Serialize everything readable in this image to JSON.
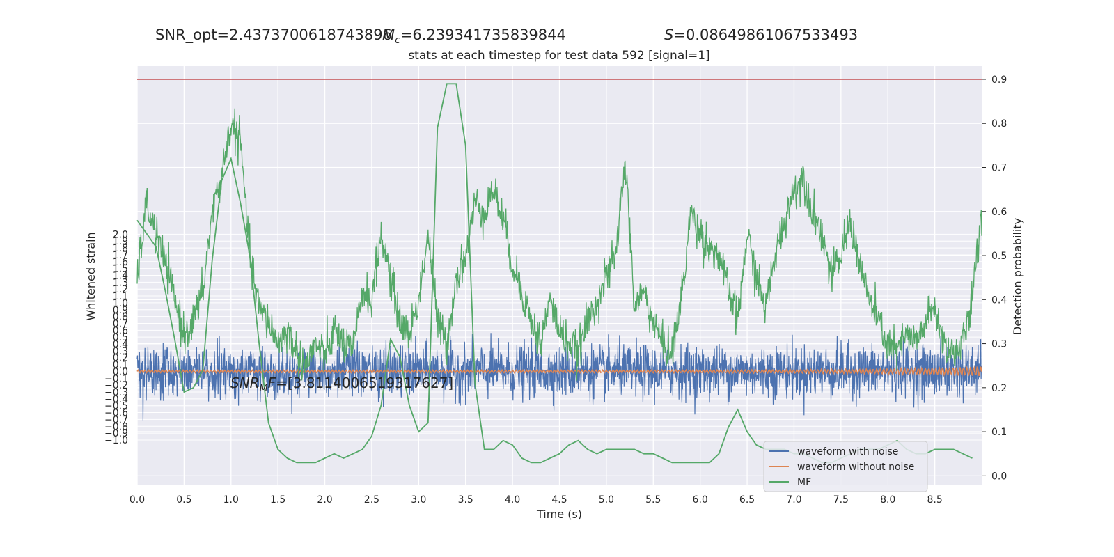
{
  "header": {
    "snr_opt": "SNR_opt=2.4373700618743896",
    "mc_symbol": "M",
    "mc_sub": "c",
    "mc_value": "=6.239341735839844",
    "s_symbol": "S",
    "s_value": "=0.08649861067533493",
    "subtitle": "stats at each timestep for test data 592 [signal=1]"
  },
  "annotation": {
    "snr_symbol": "SNR",
    "snr_sub": "M",
    "snr_tail": "F",
    "snr_value": "=[3.8114006519317627]"
  },
  "legend": {
    "items": [
      {
        "label": "waveform with noise",
        "color": "#4c72b0"
      },
      {
        "label": "waveform without noise",
        "color": "#dd8452"
      },
      {
        "label": "MF",
        "color": "#55a868"
      }
    ]
  },
  "chart_data": {
    "type": "line",
    "xlabel": "Time (s)",
    "ylabel_left": "Whitened strain",
    "ylabel_right": "Detection probability",
    "xlim": [
      0.0,
      9.0
    ],
    "ylim_left": [
      -1.65,
      4.45
    ],
    "ylim_right": [
      -0.02,
      0.93
    ],
    "x_ticks": [
      "0.0",
      "0.5",
      "1.0",
      "1.5",
      "2.0",
      "2.5",
      "3.0",
      "3.5",
      "4.0",
      "4.5",
      "5.0",
      "5.5",
      "6.0",
      "6.5",
      "7.0",
      "7.5",
      "8.0",
      "8.5"
    ],
    "y_left_ticks": [
      "-1.0",
      "-0.9",
      "-0.8",
      "-0.7",
      "-0.6",
      "-0.5",
      "-0.4",
      "-0.3",
      "-0.2",
      "-0.1",
      "0.0",
      "0.1",
      "0.2",
      "0.3",
      "0.4",
      "0.5",
      "0.6",
      "0.7",
      "0.8",
      "0.9",
      "1.0",
      "1.1",
      "1.2",
      "1.3",
      "1.4",
      "1.5",
      "1.6",
      "1.7",
      "1.8",
      "1.9",
      "2.0"
    ],
    "y_right_ticks": [
      "0.0",
      "0.1",
      "0.2",
      "0.3",
      "0.4",
      "0.5",
      "0.6",
      "0.7",
      "0.8",
      "0.9"
    ],
    "threshold": 0.9,
    "threshold_color": "#c44e52",
    "grid": true,
    "legend_position": "lower right",
    "series": [
      {
        "name": "waveform with noise",
        "axis": "left",
        "color": "#4c72b0",
        "description_values": {
          "typical_amplitude": 0.45,
          "peak_amplitude": 0.85
        }
      },
      {
        "name": "waveform without noise",
        "axis": "left",
        "color": "#dd8452",
        "description_values": {
          "typical_amplitude": 0.02,
          "final_peak": 0.07
        }
      },
      {
        "name": "detection probability",
        "axis": "right",
        "color": "#55a868",
        "x": [
          0.0,
          0.1,
          0.2,
          0.3,
          0.4,
          0.5,
          0.6,
          0.7,
          0.8,
          0.9,
          1.0,
          1.1,
          1.2,
          1.3,
          1.4,
          1.5,
          1.6,
          1.7,
          1.8,
          1.9,
          2.0,
          2.1,
          2.2,
          2.3,
          2.4,
          2.5,
          2.6,
          2.7,
          2.8,
          2.9,
          3.0,
          3.1,
          3.2,
          3.3,
          3.4,
          3.5,
          3.6,
          3.7,
          3.8,
          3.9,
          4.0,
          4.1,
          4.2,
          4.3,
          4.4,
          4.5,
          4.6,
          4.7,
          4.8,
          4.9,
          5.0,
          5.1,
          5.2,
          5.3,
          5.4,
          5.5,
          5.6,
          5.7,
          5.8,
          5.9,
          6.0,
          6.1,
          6.2,
          6.3,
          6.4,
          6.5,
          6.6,
          6.7,
          6.8,
          6.9,
          7.0,
          7.1,
          7.2,
          7.3,
          7.4,
          7.5,
          7.6,
          7.7,
          7.8,
          7.9,
          8.0,
          8.1,
          8.2,
          8.3,
          8.4,
          8.5,
          8.6,
          8.7,
          8.8,
          8.9,
          9.0
        ],
        "y": [
          0.45,
          0.62,
          0.55,
          0.48,
          0.4,
          0.32,
          0.35,
          0.42,
          0.6,
          0.68,
          0.8,
          0.76,
          0.5,
          0.38,
          0.35,
          0.3,
          0.33,
          0.28,
          0.25,
          0.3,
          0.27,
          0.33,
          0.3,
          0.28,
          0.42,
          0.4,
          0.55,
          0.45,
          0.35,
          0.32,
          0.4,
          0.55,
          0.35,
          0.3,
          0.45,
          0.5,
          0.62,
          0.6,
          0.65,
          0.58,
          0.48,
          0.42,
          0.35,
          0.3,
          0.4,
          0.33,
          0.3,
          0.28,
          0.35,
          0.4,
          0.45,
          0.5,
          0.72,
          0.38,
          0.42,
          0.35,
          0.3,
          0.28,
          0.4,
          0.6,
          0.55,
          0.52,
          0.5,
          0.42,
          0.35,
          0.55,
          0.45,
          0.38,
          0.5,
          0.58,
          0.65,
          0.68,
          0.6,
          0.55,
          0.45,
          0.5,
          0.58,
          0.48,
          0.4,
          0.35,
          0.3,
          0.28,
          0.32,
          0.3,
          0.35,
          0.38,
          0.3,
          0.28,
          0.3,
          0.4,
          0.6
        ]
      },
      {
        "name": "MF",
        "axis": "right",
        "color": "#55a868",
        "x": [
          0.0,
          0.1,
          0.2,
          0.3,
          0.4,
          0.5,
          0.6,
          0.7,
          0.8,
          0.9,
          1.0,
          1.1,
          1.2,
          1.3,
          1.4,
          1.5,
          1.6,
          1.7,
          1.8,
          1.9,
          2.0,
          2.1,
          2.2,
          2.3,
          2.4,
          2.5,
          2.6,
          2.7,
          2.8,
          2.9,
          3.0,
          3.1,
          3.2,
          3.3,
          3.4,
          3.5,
          3.6,
          3.7,
          3.8,
          3.9,
          4.0,
          4.1,
          4.2,
          4.3,
          4.4,
          4.5,
          4.6,
          4.7,
          4.8,
          4.9,
          5.0,
          5.1,
          5.2,
          5.3,
          5.4,
          5.5,
          5.6,
          5.7,
          5.8,
          5.9,
          6.0,
          6.1,
          6.2,
          6.3,
          6.4,
          6.5,
          6.6,
          6.7,
          6.8,
          6.9,
          7.0,
          7.1,
          7.2,
          7.3,
          7.4,
          7.5,
          7.6,
          7.7,
          7.8,
          7.9,
          8.0,
          8.1,
          8.2,
          8.3,
          8.4,
          8.5,
          8.6,
          8.7,
          8.8,
          8.9
        ],
        "y": [
          0.58,
          0.55,
          0.52,
          0.42,
          0.31,
          0.19,
          0.2,
          0.24,
          0.49,
          0.67,
          0.72,
          0.62,
          0.5,
          0.3,
          0.12,
          0.06,
          0.04,
          0.03,
          0.03,
          0.03,
          0.04,
          0.05,
          0.04,
          0.05,
          0.06,
          0.09,
          0.16,
          0.31,
          0.27,
          0.16,
          0.1,
          0.12,
          0.79,
          0.89,
          0.89,
          0.75,
          0.21,
          0.06,
          0.06,
          0.08,
          0.07,
          0.04,
          0.03,
          0.03,
          0.04,
          0.05,
          0.07,
          0.08,
          0.06,
          0.05,
          0.06,
          0.06,
          0.06,
          0.06,
          0.05,
          0.05,
          0.04,
          0.03,
          0.03,
          0.03,
          0.03,
          0.03,
          0.05,
          0.11,
          0.15,
          0.1,
          0.07,
          0.06,
          0.06,
          0.06,
          0.05,
          0.05,
          0.04,
          0.03,
          0.03,
          0.04,
          0.05,
          0.06,
          0.06,
          0.06,
          0.07,
          0.08,
          0.06,
          0.05,
          0.05,
          0.06,
          0.06,
          0.06,
          0.05,
          0.04
        ]
      }
    ]
  }
}
